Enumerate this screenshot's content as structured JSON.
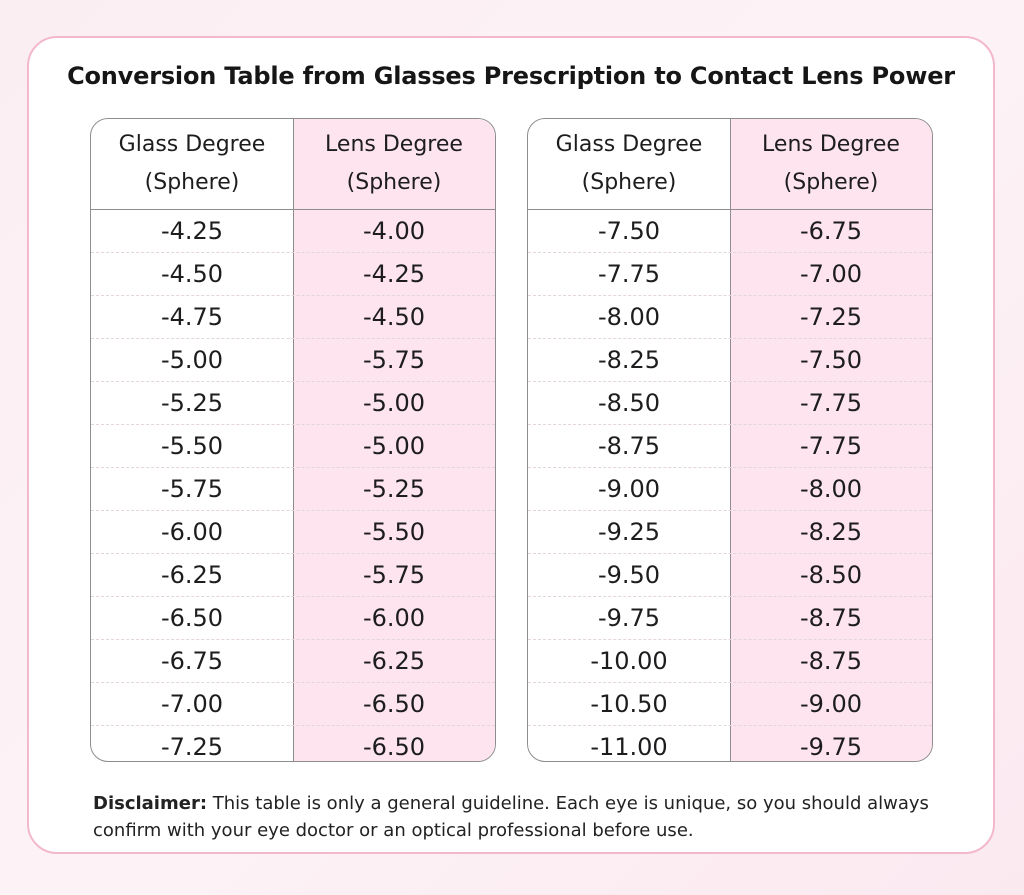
{
  "title": "Conversion Table from Glasses Prescription to Contact Lens Power",
  "headers": {
    "glass_line1": "Glass Degree",
    "glass_line2": "(Sphere)",
    "lens_line1": "Lens Degree",
    "lens_line2": "(Sphere)"
  },
  "colors": {
    "accent_pink": "#fde4ee",
    "border_pink": "#f3b8cc"
  },
  "left_table": [
    [
      "-4.25",
      "-4.00"
    ],
    [
      "-4.50",
      "-4.25"
    ],
    [
      "-4.75",
      "-4.50"
    ],
    [
      "-5.00",
      "-5.75"
    ],
    [
      "-5.25",
      "-5.00"
    ],
    [
      "-5.50",
      "-5.00"
    ],
    [
      "-5.75",
      "-5.25"
    ],
    [
      "-6.00",
      "-5.50"
    ],
    [
      "-6.25",
      "-5.75"
    ],
    [
      "-6.50",
      "-6.00"
    ],
    [
      "-6.75",
      "-6.25"
    ],
    [
      "-7.00",
      "-6.50"
    ],
    [
      "-7.25",
      "-6.50"
    ]
  ],
  "right_table": [
    [
      "-7.50",
      "-6.75"
    ],
    [
      "-7.75",
      "-7.00"
    ],
    [
      "-8.00",
      "-7.25"
    ],
    [
      "-8.25",
      "-7.50"
    ],
    [
      "-8.50",
      "-7.75"
    ],
    [
      "-8.75",
      "-7.75"
    ],
    [
      "-9.00",
      "-8.00"
    ],
    [
      "-9.25",
      "-8.25"
    ],
    [
      "-9.50",
      "-8.50"
    ],
    [
      "-9.75",
      "-8.75"
    ],
    [
      "-10.00",
      "-8.75"
    ],
    [
      "-10.50",
      "-9.00"
    ],
    [
      "-11.00",
      "-9.75"
    ]
  ],
  "disclaimer": {
    "label": "Disclaimer:",
    "text": "This table is only a general guideline. Each eye is unique, so you should always confirm with your eye doctor or an optical professional before use."
  }
}
